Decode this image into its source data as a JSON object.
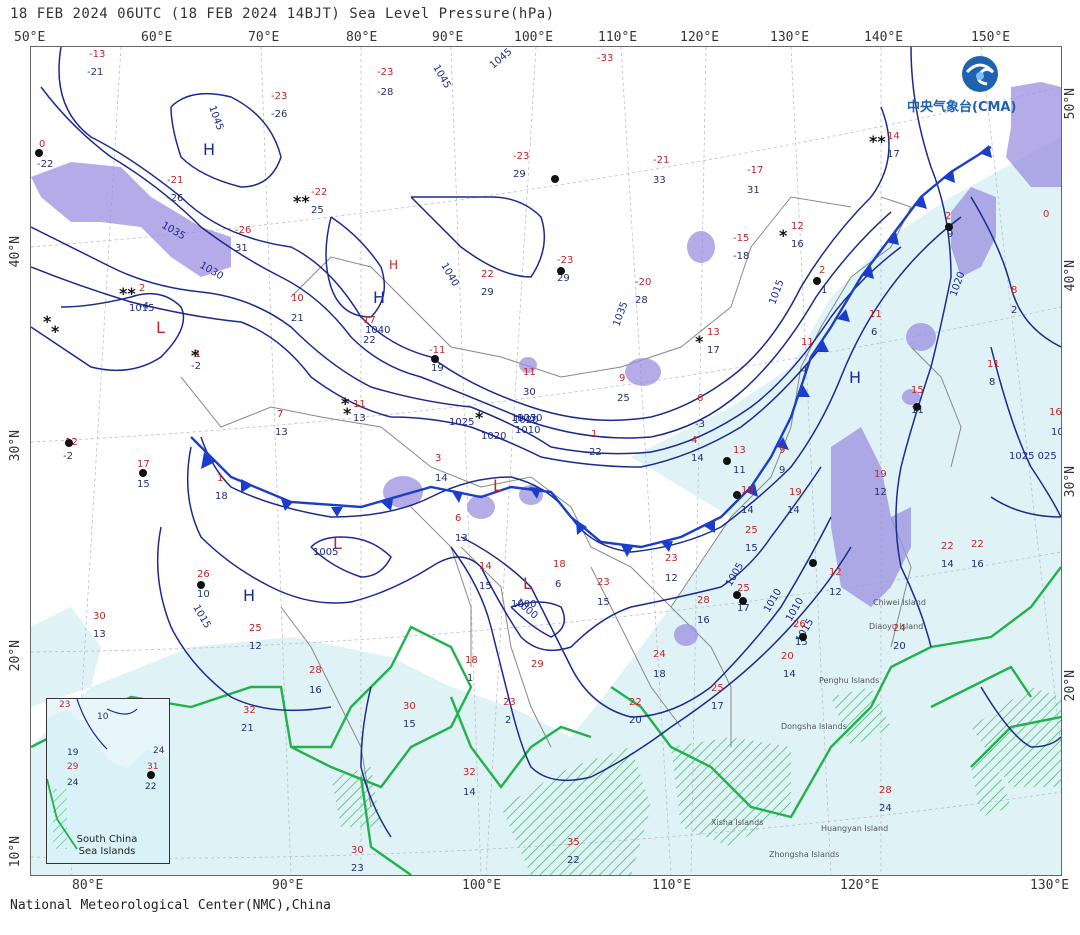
{
  "header": {
    "title": "18 FEB 2024 06UTC  (18 FEB 2024 14BJT) Sea Level Pressure(hPa)"
  },
  "footer": {
    "credit": "National Meteorological Center(NMC),China"
  },
  "logo": {
    "text": "中央气象台(CMA)",
    "icon": "cma-logo-icon"
  },
  "axes": {
    "lon_top": [
      "50°E",
      "60°E",
      "70°E",
      "80°E",
      "90°E",
      "100°E",
      "110°E",
      "120°E",
      "130°E",
      "140°E",
      "150°E"
    ],
    "lon_bottom": [
      "80°E",
      "90°E",
      "100°E",
      "110°E",
      "120°E",
      "130°E"
    ],
    "lat_left": [
      "40°N",
      "30°N",
      "20°N",
      "10°N"
    ],
    "lat_right": [
      "50°N",
      "40°N",
      "30°N",
      "20°N"
    ]
  },
  "pressure_centers": {
    "H": [
      "H",
      "H",
      "H",
      "H",
      "H"
    ],
    "L": [
      "L",
      "L",
      "L",
      "L"
    ]
  },
  "isobar_labels": [
    "1045",
    "1045",
    "1045",
    "1040",
    "1035",
    "1030",
    "1025",
    "1020",
    "1015",
    "1010",
    "1005",
    "1000",
    "1015",
    "1020",
    "1025",
    "1030",
    "1035",
    "1040",
    "1015",
    "1020",
    "1025 025",
    "1015",
    "1010",
    "1005",
    "1000",
    "1010"
  ],
  "stations": [
    {
      "top": "-13",
      "bot": "-21"
    },
    {
      "top": "-23",
      "bot": "-28"
    },
    {
      "top": "-23",
      "bot": "-26"
    },
    {
      "top": "-33",
      "bot": ""
    },
    {
      "top": "-21",
      "bot": "-26"
    },
    {
      "top": "-26",
      "bot": "31"
    },
    {
      "top": "-22",
      "bot": "25"
    },
    {
      "top": "-23",
      "bot": "29"
    },
    {
      "top": "-21",
      "bot": "33"
    },
    {
      "top": "-17",
      "bot": "31"
    },
    {
      "top": "12",
      "bot": "16"
    },
    {
      "top": "14",
      "bot": "17"
    },
    {
      "top": "-23",
      "bot": "29"
    },
    {
      "top": "22",
      "bot": "29"
    },
    {
      "top": "-20",
      "bot": "28"
    },
    {
      "top": "-15",
      "bot": "-18"
    },
    {
      "top": "-11",
      "bot": "19"
    },
    {
      "top": "17",
      "bot": "22"
    },
    {
      "top": "10",
      "bot": "21"
    },
    {
      "top": "11",
      "bot": "30"
    },
    {
      "top": "9",
      "bot": "25"
    },
    {
      "top": "13",
      "bot": "17"
    },
    {
      "top": "11",
      "bot": "13"
    },
    {
      "top": "7",
      "bot": "13"
    },
    {
      "top": "12",
      "bot": "-2"
    },
    {
      "top": "17",
      "bot": "15"
    },
    {
      "top": "1",
      "bot": "18"
    },
    {
      "top": "3",
      "bot": "14"
    },
    {
      "top": "6",
      "bot": "13"
    },
    {
      "top": "1",
      "bot": "22"
    },
    {
      "top": "4",
      "bot": "14"
    },
    {
      "top": "13",
      "bot": "11"
    },
    {
      "top": "19",
      "bot": "14"
    },
    {
      "top": "19",
      "bot": "14"
    },
    {
      "top": "25",
      "bot": "15"
    },
    {
      "top": "26",
      "bot": "10"
    },
    {
      "top": "25",
      "bot": "12"
    },
    {
      "top": "30",
      "bot": "13"
    },
    {
      "top": "28",
      "bot": "16"
    },
    {
      "top": "32",
      "bot": "21"
    },
    {
      "top": "30",
      "bot": "15"
    },
    {
      "top": "18",
      "bot": "1"
    },
    {
      "top": "23",
      "bot": "2"
    },
    {
      "top": "29",
      "bot": ""
    },
    {
      "top": "32",
      "bot": "14"
    },
    {
      "top": "30",
      "bot": "23"
    },
    {
      "top": "35",
      "bot": "22"
    },
    {
      "top": "22",
      "bot": "20"
    },
    {
      "top": "24",
      "bot": "18"
    },
    {
      "top": "28",
      "bot": "16"
    },
    {
      "top": "25",
      "bot": "17"
    },
    {
      "top": "25",
      "bot": "17"
    },
    {
      "top": "26",
      "bot": "15"
    },
    {
      "top": "20",
      "bot": "14"
    },
    {
      "top": "24",
      "bot": "20"
    },
    {
      "top": "28",
      "bot": "24"
    },
    {
      "top": "19",
      "bot": "12"
    },
    {
      "top": "22",
      "bot": "14"
    },
    {
      "top": "15",
      "bot": "11"
    },
    {
      "top": "11",
      "bot": "8"
    },
    {
      "top": "16",
      "bot": "10"
    },
    {
      "top": "8",
      "bot": "2"
    },
    {
      "top": "2",
      "bot": "9"
    },
    {
      "top": "0",
      "bot": ""
    },
    {
      "top": "22",
      "bot": "16"
    },
    {
      "top": "23",
      "bot": "12"
    },
    {
      "top": "18",
      "bot": "6"
    },
    {
      "top": "14",
      "bot": "15"
    },
    {
      "top": "23",
      "bot": "15"
    },
    {
      "top": "11",
      "bot": "4"
    },
    {
      "top": "9",
      "bot": "9"
    },
    {
      "top": "12",
      "bot": "12"
    },
    {
      "top": "2",
      "bot": "1"
    },
    {
      "top": "11",
      "bot": "6"
    },
    {
      "top": "6",
      "bot": "-3"
    },
    {
      "top": "-1",
      "bot": "-2"
    },
    {
      "top": "2",
      "bot": "-4"
    },
    {
      "top": "0",
      "bot": "-22"
    }
  ],
  "places": [
    "Chiwei Island",
    "Diaoyu Island",
    "Penghu Islands",
    "Dongsha Islands",
    "Huangyan Island",
    "Zhongsha Islands",
    "Xisha Islands"
  ],
  "inset": {
    "label_line1": "South China",
    "label_line2": "Sea Islands",
    "values": [
      "23",
      "19",
      "29",
      "24",
      "31",
      "22",
      "10",
      "24"
    ]
  },
  "colors": {
    "isobar": "#1b2a8f",
    "cold_front": "#1a3ec9",
    "precip": "#9b8fe0",
    "warm_sea": "#dff3f7",
    "coast_green": "#22b14c",
    "temp_red": "#c0262a",
    "dew_blue": "#20306a"
  }
}
